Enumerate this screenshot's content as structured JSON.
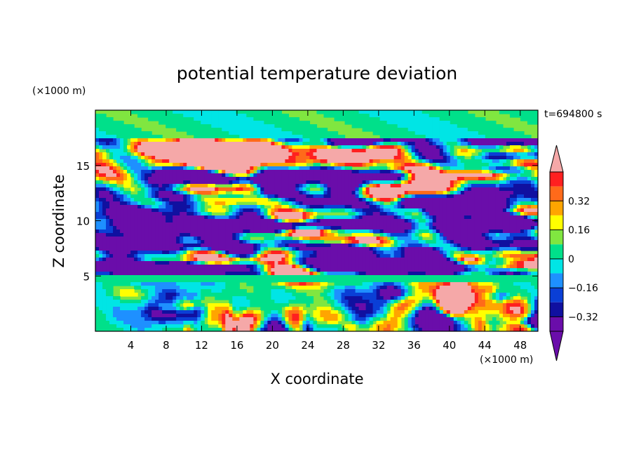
{
  "chart_data": {
    "type": "heatmap",
    "title": "potential temperature deviation",
    "xlabel": "X coordinate",
    "ylabel": "Z coordinate",
    "x_unit": "(×1000 m)",
    "y_unit": "(×1000 m)",
    "time_label": "t=694800 s",
    "xlim": [
      0,
      50
    ],
    "ylim": [
      0,
      20
    ],
    "x_ticks": [
      4,
      8,
      12,
      16,
      20,
      24,
      28,
      32,
      36,
      40,
      44,
      48
    ],
    "y_ticks": [
      5,
      10,
      15
    ],
    "colorbar": {
      "levels": [
        -0.48,
        -0.4,
        -0.32,
        -0.24,
        -0.16,
        -0.08,
        0,
        0.08,
        0.16,
        0.24,
        0.32,
        0.4,
        0.48
      ],
      "tick_labels": [
        {
          "value": 0.32,
          "label": "0.32"
        },
        {
          "value": 0.16,
          "label": "0.16"
        },
        {
          "value": 0,
          "label": "0"
        },
        {
          "value": -0.16,
          "label": "−0.16"
        },
        {
          "value": -0.32,
          "label": "−0.32"
        }
      ],
      "colors": [
        "#6a0daa",
        "#6a0daa",
        "#1010a0",
        "#0a3fd6",
        "#1e90ff",
        "#00e5e5",
        "#00e08a",
        "#80e640",
        "#ffff00",
        "#ffa500",
        "#ff6a1a",
        "#ff2020",
        "#f5a8a8"
      ]
    },
    "features": [
      {
        "desc": "band",
        "z_center": 16.2,
        "value": 0.3
      },
      {
        "desc": "band",
        "z_center": 7.0,
        "value": 0.45
      },
      {
        "desc": "band",
        "z_center": 5.6,
        "value": -0.45
      },
      {
        "desc": "band",
        "z_center": 3.8,
        "value": 0.02
      },
      {
        "desc": "blob",
        "x": 38,
        "z": 13.5,
        "value": 0.45
      },
      {
        "desc": "blob",
        "x": 34,
        "z": 12.5,
        "value": 0.45
      },
      {
        "desc": "blob",
        "x": 40,
        "z": 11.5,
        "value": -0.45
      },
      {
        "desc": "blob",
        "x": 14,
        "z": 15.3,
        "value": 0.45
      },
      {
        "desc": "blob",
        "x": 8,
        "z": 14.8,
        "value": -0.45
      },
      {
        "desc": "blob",
        "x": 22,
        "z": 14.0,
        "value": -0.45
      },
      {
        "desc": "blob",
        "x": 28,
        "z": 15.5,
        "value": 0.45
      }
    ]
  }
}
